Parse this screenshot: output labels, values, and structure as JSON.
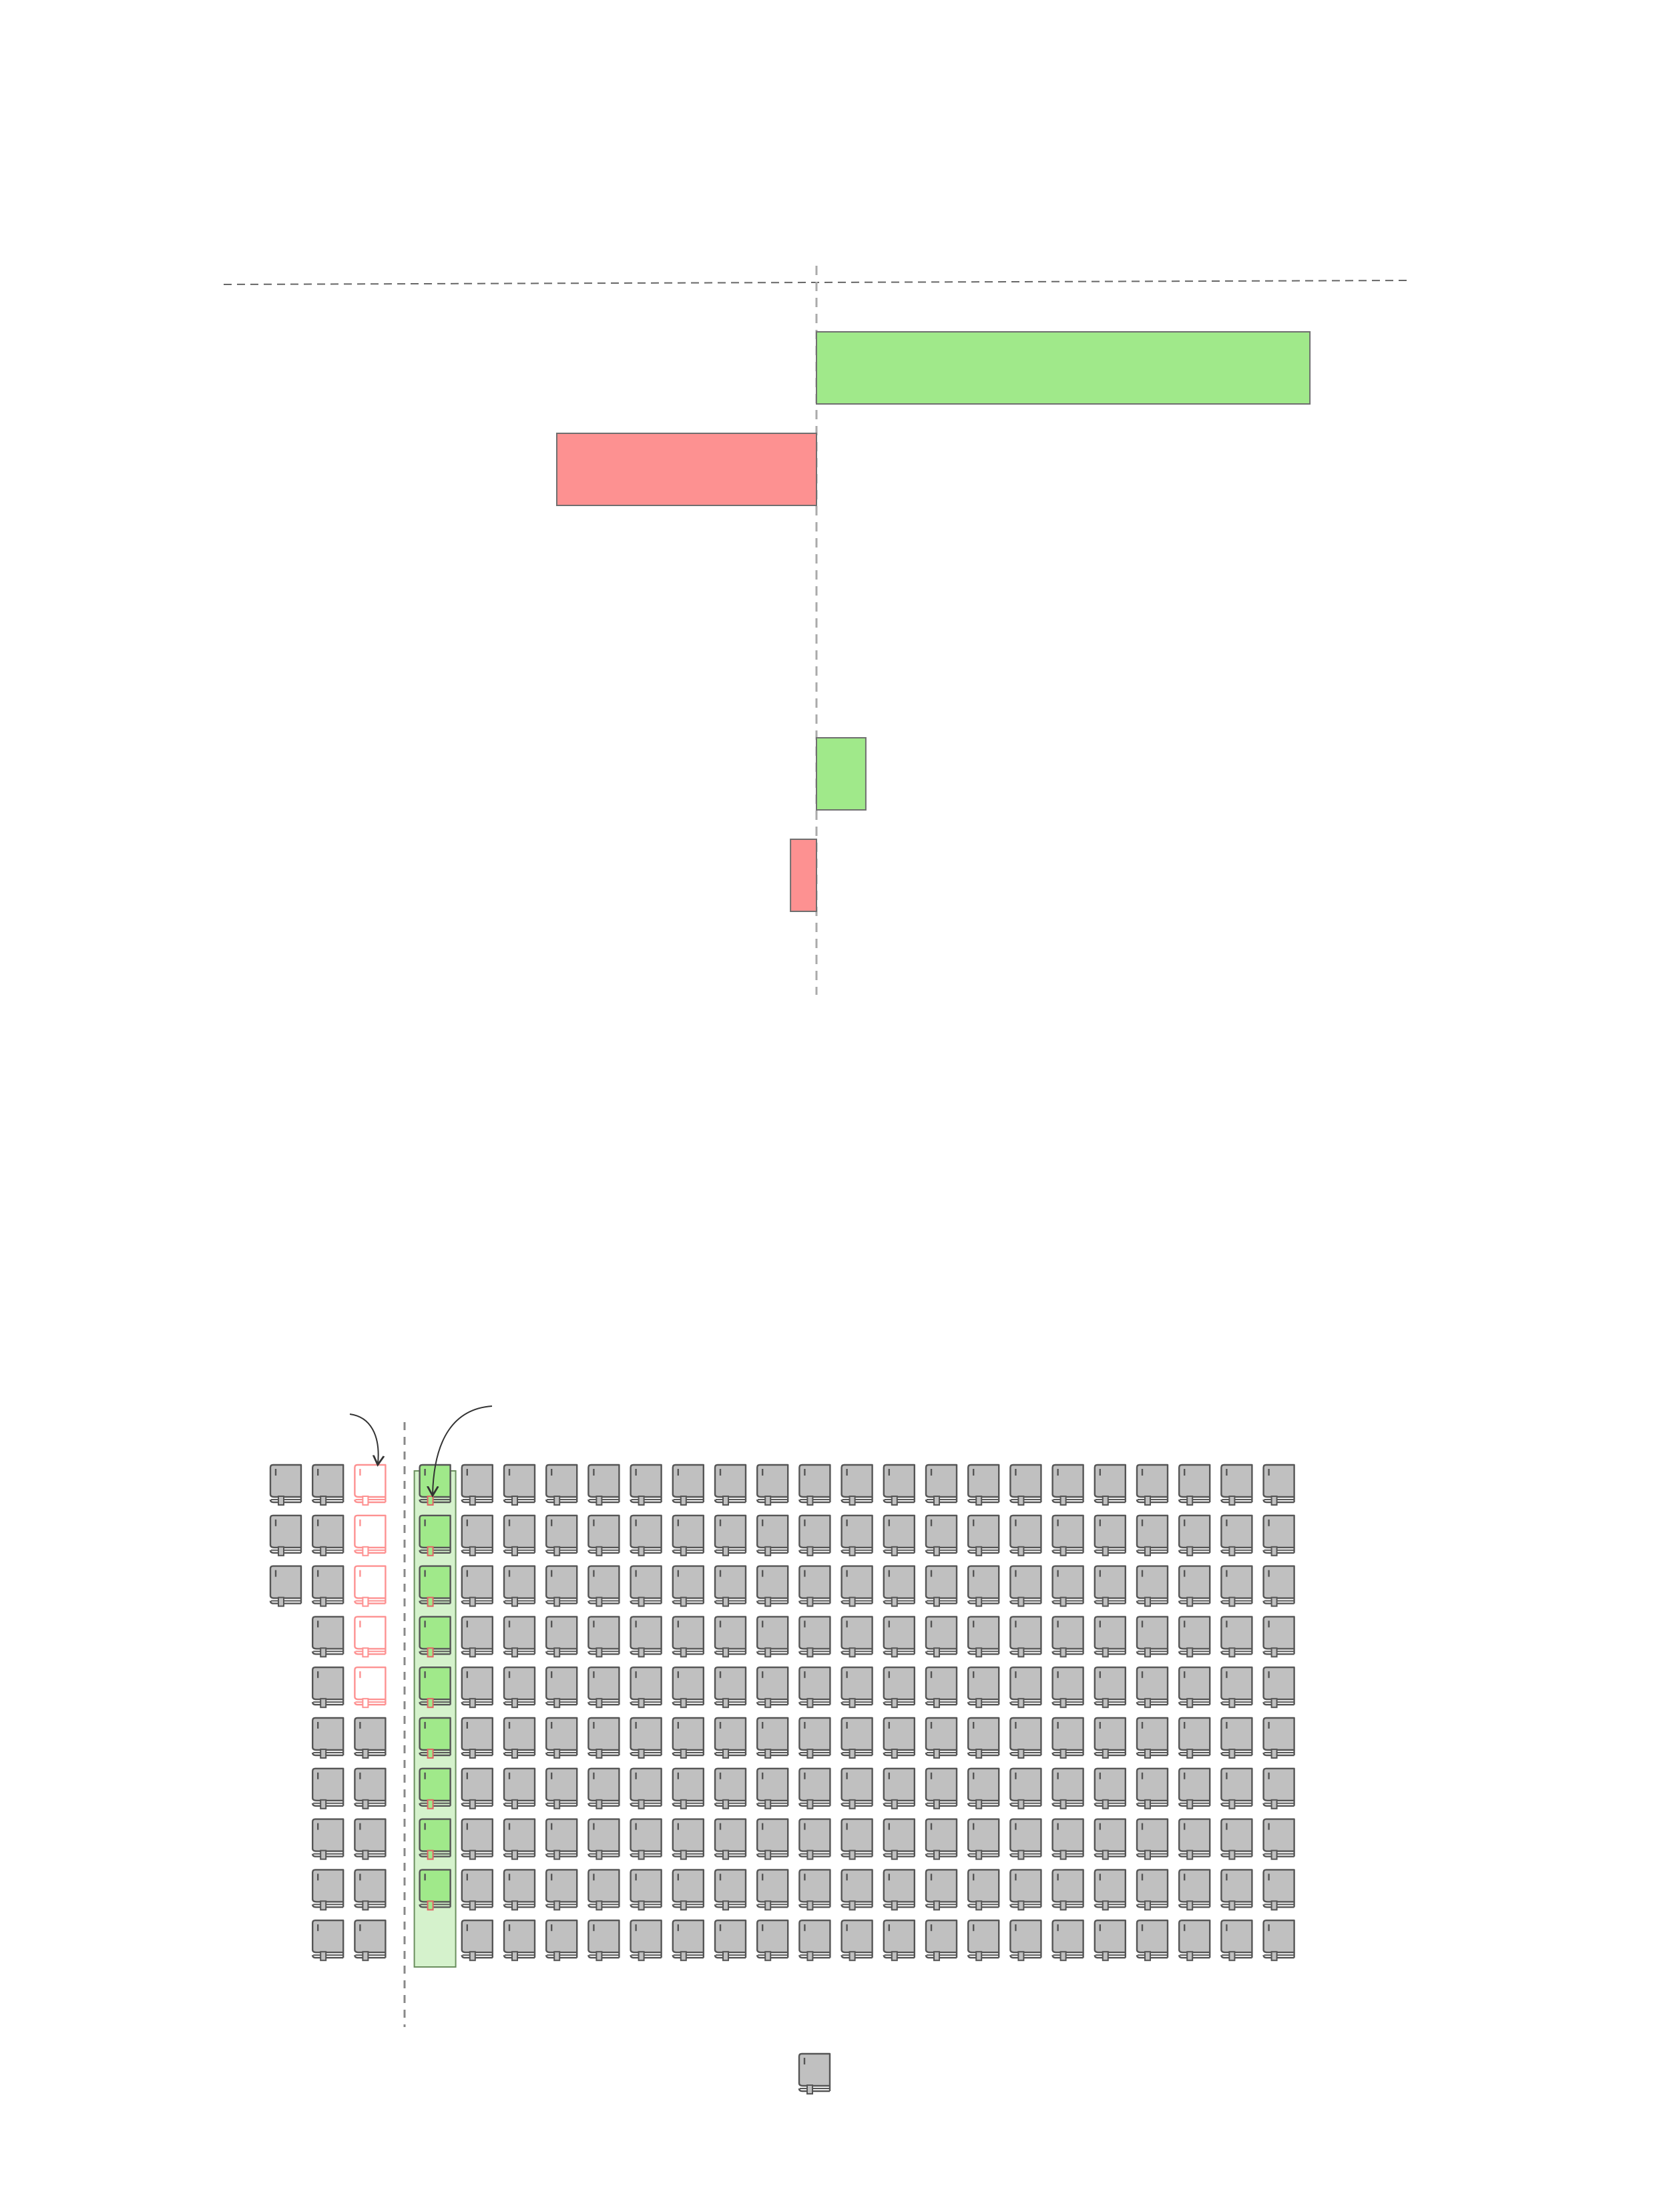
{
  "chart_data": [
    {
      "type": "bar",
      "orientation": "horizontal",
      "title": "",
      "xlabel": "",
      "ylabel": "",
      "zero_line": true,
      "grid": false,
      "legend": "none",
      "series": [
        {
          "name": "",
          "values": [
            19,
            -10,
            0,
            0,
            1.9,
            -1
          ]
        }
      ],
      "colors": {
        "positive": "#a0e98a",
        "negative": "#fd9191",
        "edge": "#6f6f6f"
      }
    },
    {
      "type": "pictograph",
      "title": "",
      "icon": "book-icon",
      "columns": [
        {
          "count": 3,
          "color": "#c0c0c0"
        },
        {
          "count": 10,
          "color": "#c0c0c0"
        },
        {
          "count": 5,
          "color": "#ffffff",
          "outline": "#fd9191",
          "then": {
            "count": 5,
            "color": "#c0c0c0"
          }
        },
        {
          "count": 9,
          "color": "#a0e98a",
          "highlighted": true
        },
        {
          "repeat": 20,
          "count": 10,
          "color": "#c0c0c0"
        }
      ],
      "divider_after_column": 3,
      "legend_icon": {
        "icon": "book-icon",
        "color": "#c0c0c0"
      },
      "annotations": [
        {
          "type": "arrow",
          "target": "removed-column"
        },
        {
          "type": "arrow",
          "target": "added-column"
        }
      ]
    }
  ]
}
